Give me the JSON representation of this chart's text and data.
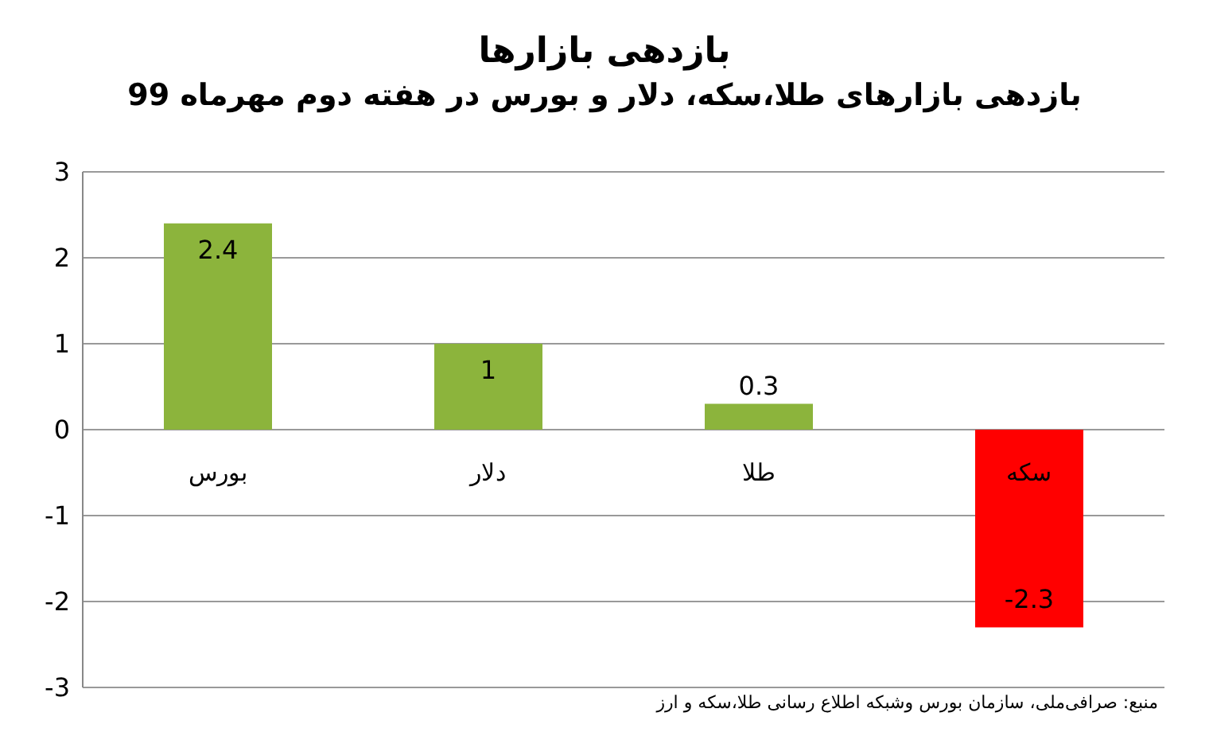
{
  "chart_data": {
    "type": "bar",
    "title": "بازدهی بازارها",
    "subtitle": "بازدهی بازارهای طلا،سکه، دلار و بورس در هفته دوم مهرماه 99",
    "categories": [
      "بورس",
      "دلار",
      "طلا",
      "سکه"
    ],
    "values": [
      2.4,
      1,
      0.3,
      -2.3
    ],
    "colors": [
      "#8cb43c",
      "#8cb43c",
      "#8cb43c",
      "#ff0000"
    ],
    "data_labels": true,
    "ylim": [
      -3,
      3
    ],
    "yticks": [
      -3,
      -2,
      -1,
      0,
      1,
      2,
      3
    ],
    "grid": "y",
    "annotations": [
      "منبع: صرافی‌ملی، سازمان بورس وشبکه اطلاع رسانی طلا،سکه و ارز"
    ]
  }
}
